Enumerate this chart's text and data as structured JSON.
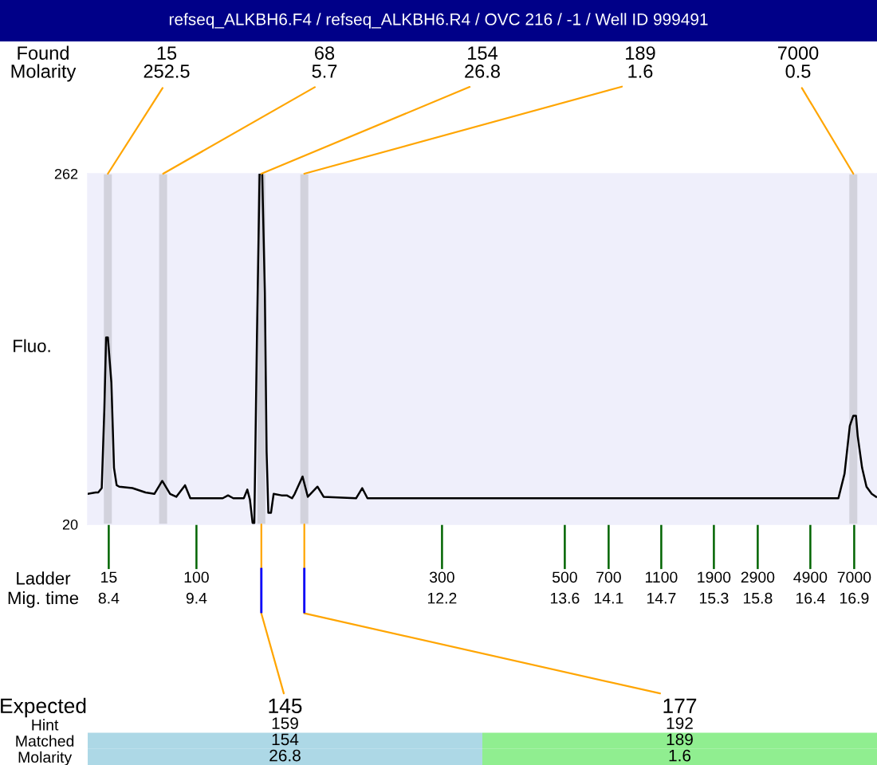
{
  "chart_data": [
    {
      "type": "line",
      "title": "refseq_ALKBH6.F4 / refseq_ALKBH6.R4 / OVC 216 / -1 / Well ID 999491",
      "xlabel": "Ladder\nMig. time",
      "ylabel": "Fluo.",
      "color": "#000000",
      "x": [
        8.16,
        8.25,
        8.28,
        8.32,
        8.35,
        8.37,
        8.39,
        8.43,
        8.46,
        8.49,
        8.52,
        8.67,
        8.82,
        8.92,
        9.01,
        9.1,
        9.17,
        9.27,
        9.33,
        9.7,
        9.76,
        9.82,
        9.94,
        9.98,
        10.01,
        10.04,
        10.06,
        10.09,
        10.12,
        10.15,
        10.18,
        10.2,
        10.22,
        10.25,
        10.28,
        10.37,
        10.43,
        10.49,
        10.52,
        10.61,
        10.67,
        10.78,
        10.85,
        11.22,
        11.29,
        11.35,
        16.72,
        16.79,
        16.85,
        16.89,
        16.92,
        16.94,
        16.99,
        17.04,
        17.1,
        17.15
      ],
      "values": [
        41,
        42,
        42,
        45,
        100,
        149,
        149,
        118,
        59,
        47,
        46,
        45,
        42,
        41,
        50,
        41,
        39,
        47,
        38,
        38,
        40,
        38,
        38,
        44,
        37,
        21,
        21,
        150,
        262,
        262,
        180,
        70,
        28,
        28,
        41,
        40,
        40,
        38,
        41,
        53,
        39,
        46,
        39,
        38,
        45,
        38,
        38,
        55,
        88,
        95,
        95,
        81,
        59,
        46,
        41,
        39
      ],
      "xlim": [
        8.16,
        17.16
      ],
      "xticks": [
        8.4,
        9.4,
        12.2,
        13.6,
        14.1,
        14.7,
        15.3,
        15.8,
        16.4,
        16.9
      ],
      "ylim": [
        20,
        262
      ],
      "yticks": [
        20,
        262
      ],
      "ref_lines": [
        {
          "axis": "x",
          "value": 8.39,
          "color": "#d2d2dc"
        },
        {
          "axis": "x",
          "value": 9.02,
          "color": "#d2d2dc"
        },
        {
          "axis": "x",
          "value": 10.14,
          "color": "#d2d2dc"
        },
        {
          "axis": "x",
          "value": 10.63,
          "color": "#d2d2dc"
        },
        {
          "axis": "x",
          "value": 16.89,
          "color": "#d2d2dc"
        }
      ],
      "annotations": [
        "15",
        "100",
        "300",
        "500",
        "700",
        "1100",
        "1900",
        "2900",
        "4900",
        "7000",
        "Found\nMolarity",
        {
          "text": "15\n252.5",
          "x": 8.39,
          "y": 262
        },
        {
          "text": "68\n5.7",
          "x": 9.02,
          "y": 262
        },
        {
          "text": "154\n26.8",
          "x": 10.14,
          "y": 262
        },
        {
          "text": "189\n1.6",
          "x": 10.63,
          "y": 262
        },
        {
          "text": "7000\n0.5",
          "x": 16.89,
          "y": 262
        },
        "Expected",
        {
          "text": "145",
          "x": 10.14,
          "y": 20
        },
        {
          "text": "177",
          "x": 10.63,
          "y": 20
        }
      ]
    },
    {
      "type": "heatmap",
      "categories": [
        null,
        null
      ],
      "y_categories": [
        "Hint",
        "Matched",
        "Molarity"
      ],
      "cells": [
        [
          159,
          192
        ],
        [
          154,
          189
        ],
        [
          26.8,
          1.6
        ]
      ],
      "colors": [
        [
          "#ffffff",
          "#ffffff"
        ],
        [
          "#add8e6",
          "#90ee90"
        ],
        [
          "#add8e6",
          "#90ee90"
        ]
      ],
      "data_labels": true
    }
  ]
}
